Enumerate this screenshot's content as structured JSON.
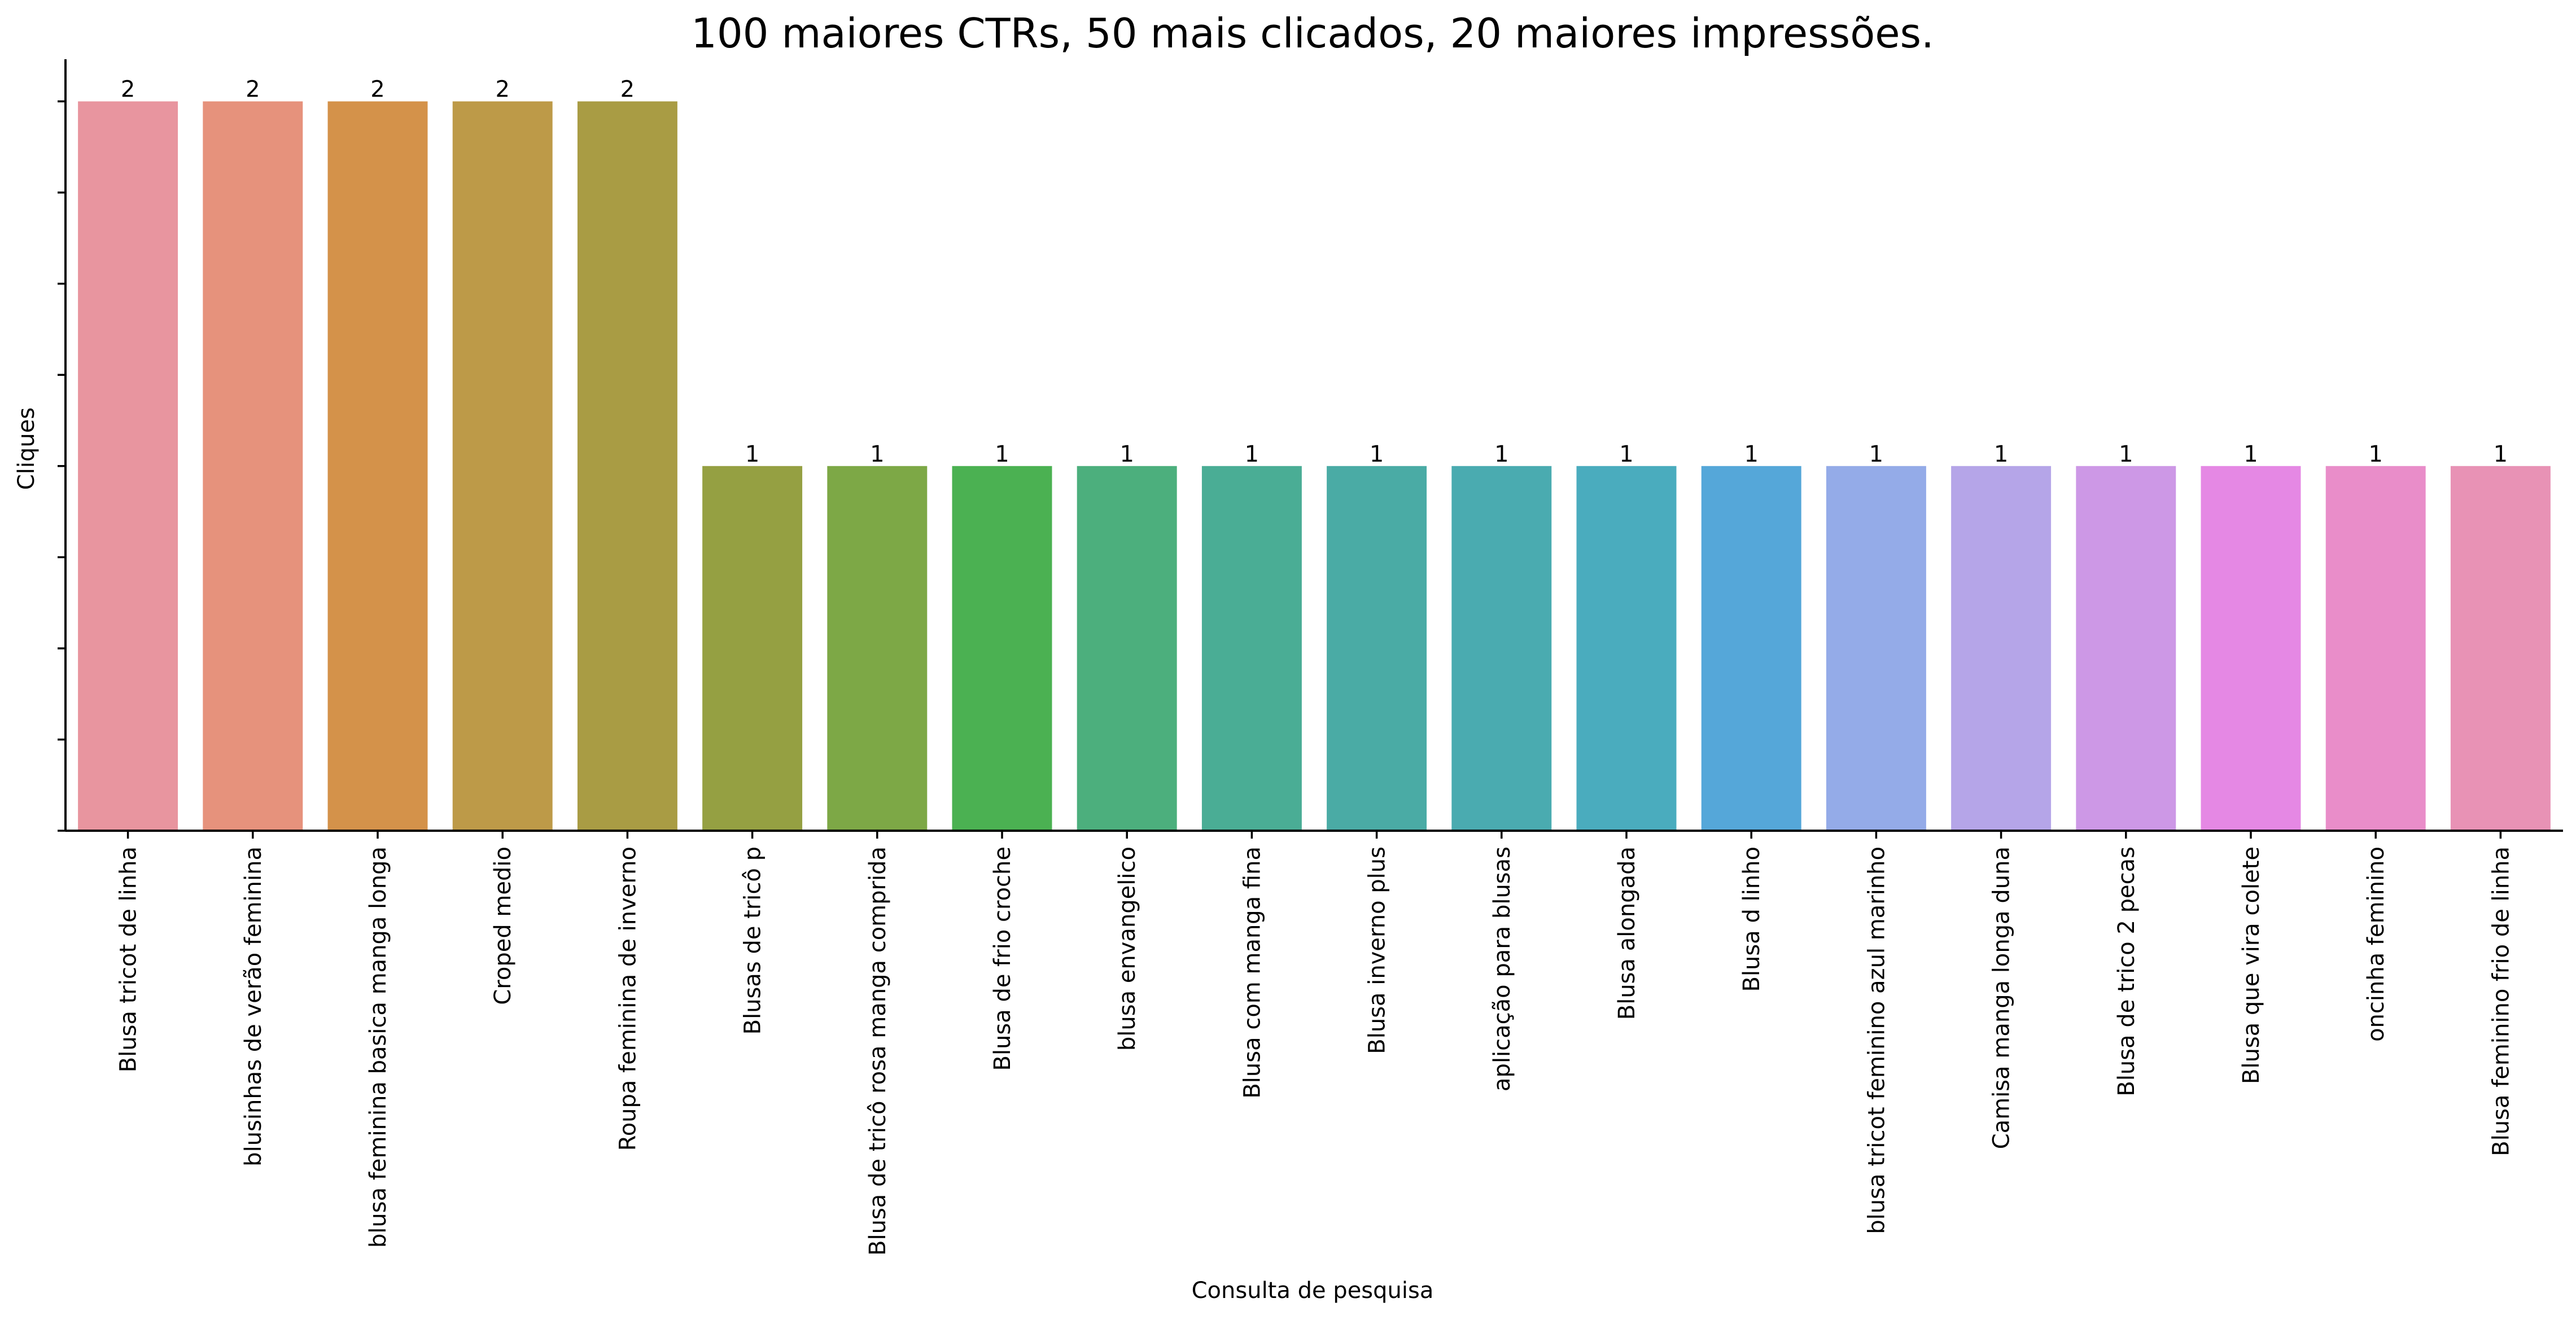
{
  "chart_data": {
    "type": "bar",
    "title": "100 maiores CTRs, 50 mais clicados, 20 maiores impressões.",
    "xlabel": "Consulta de pesquisa",
    "ylabel": "Cliques",
    "ylim": [
      0,
      2.1
    ],
    "y_tick_values": [
      0,
      0.25,
      0.5,
      0.75,
      1,
      1.25,
      1.5,
      1.75,
      2
    ],
    "y_tick_labels_visible": false,
    "grid": false,
    "categories": [
      "Blusa tricot de linha",
      "blusinhas de verão feminina",
      "blusa feminina basica manga longa",
      "Croped medio",
      "Roupa feminina de inverno",
      "Blusas de tricô p",
      "Blusa de tricô rosa manga comprida",
      "Blusa de frio croche",
      "blusa envangelico",
      "Blusa com manga fina",
      "Blusa inverno plus",
      "aplicação para blusas",
      "Blusa alongada",
      "Blusa d linho",
      "blusa tricot feminino azul marinho",
      "Camisa manga longa duna",
      "Blusa de trico 2 pecas",
      "Blusa que vira colete",
      "oncinha feminino",
      "Blusa feminino frio de linha"
    ],
    "values": [
      2,
      2,
      2,
      2,
      2,
      1,
      1,
      1,
      1,
      1,
      1,
      1,
      1,
      1,
      1,
      1,
      1,
      1,
      1,
      1
    ],
    "data_labels": [
      "2",
      "2",
      "2",
      "2",
      "2",
      "1",
      "1",
      "1",
      "1",
      "1",
      "1",
      "1",
      "1",
      "1",
      "1",
      "1",
      "1",
      "1",
      "1",
      "1"
    ],
    "colors": [
      "#e8959f",
      "#e6927c",
      "#d4924a",
      "#bd9a48",
      "#a99c44",
      "#95a042",
      "#7da846",
      "#4bb152",
      "#4caf7d",
      "#4aad95",
      "#4aaba5",
      "#4aabb0",
      "#4aacbe",
      "#55a7d9",
      "#94abe8",
      "#b5a5e8",
      "#cd98e6",
      "#e588e4",
      "#e98dc9",
      "#e892b5"
    ]
  }
}
